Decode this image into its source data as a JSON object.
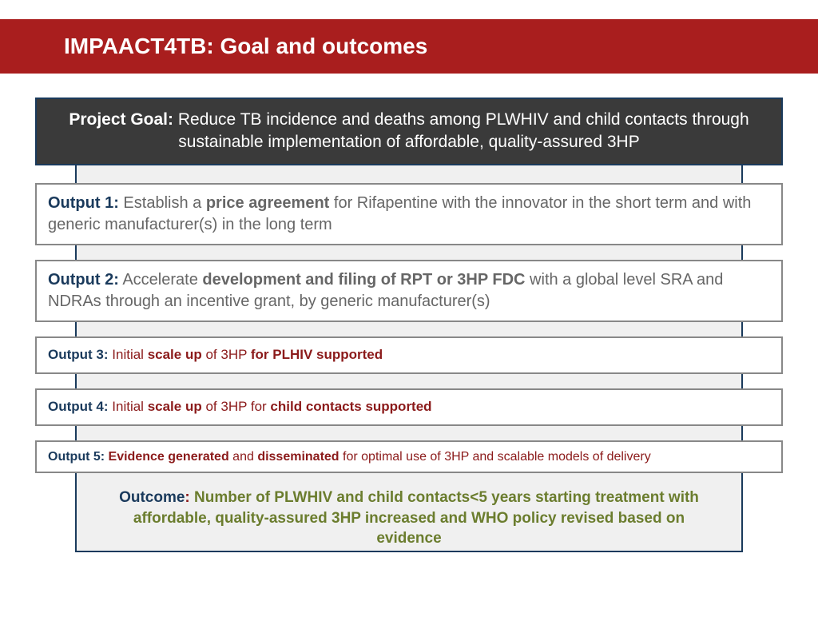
{
  "header": {
    "title": "IMPAACT4TB: Goal and outcomes"
  },
  "goal": {
    "label": "Project Goal:",
    "text": " Reduce TB incidence and deaths among PLWHIV and child contacts through sustainable implementation of affordable, quality-assured 3HP"
  },
  "outputs": {
    "o1": {
      "label": "Output 1:",
      "t1": " Establish a ",
      "b1": "price agreement",
      "t2": " for Rifapentine with the innovator in the short term and with generic manufacturer(s) in the long term"
    },
    "o2": {
      "label": "Output 2:",
      "t1": " Accelerate ",
      "b1": "development and filing of RPT or 3HP FDC",
      "t2": " with a global level SRA and NDRAs through an incentive grant, by generic manufacturer(s)"
    },
    "o3": {
      "label": "Output 3:",
      "t1": " Initial ",
      "b1": "scale up",
      "t2": " of 3HP ",
      "b2": "for PLHIV supported"
    },
    "o4": {
      "label": "Output 4:",
      "t1": "  Initial ",
      "b1": "scale up",
      "t2": " of 3HP for ",
      "b2": "child contacts supported"
    },
    "o5": {
      "label": "Output 5:",
      "b1": " Evidence generated",
      "t1": " and ",
      "b2": "disseminated",
      "t2": " for optimal use of 3HP and scalable models of delivery"
    }
  },
  "outcome": {
    "label": "Outcome",
    "colon": ": ",
    "body": "Number of PLWHIV and child contacts<5 years starting treatment with affordable, quality-assured 3HP  increased and WHO policy revised based on evidence"
  },
  "colors": {
    "header_bg": "#a91e1e",
    "goal_bg": "#3a3a3a",
    "navy": "#1a3a5c",
    "maroon": "#8b1a1a",
    "olive": "#6b7d2e",
    "grey_text": "#666666",
    "backdrop_bg": "#f0f0f0",
    "box_border": "#888888"
  }
}
